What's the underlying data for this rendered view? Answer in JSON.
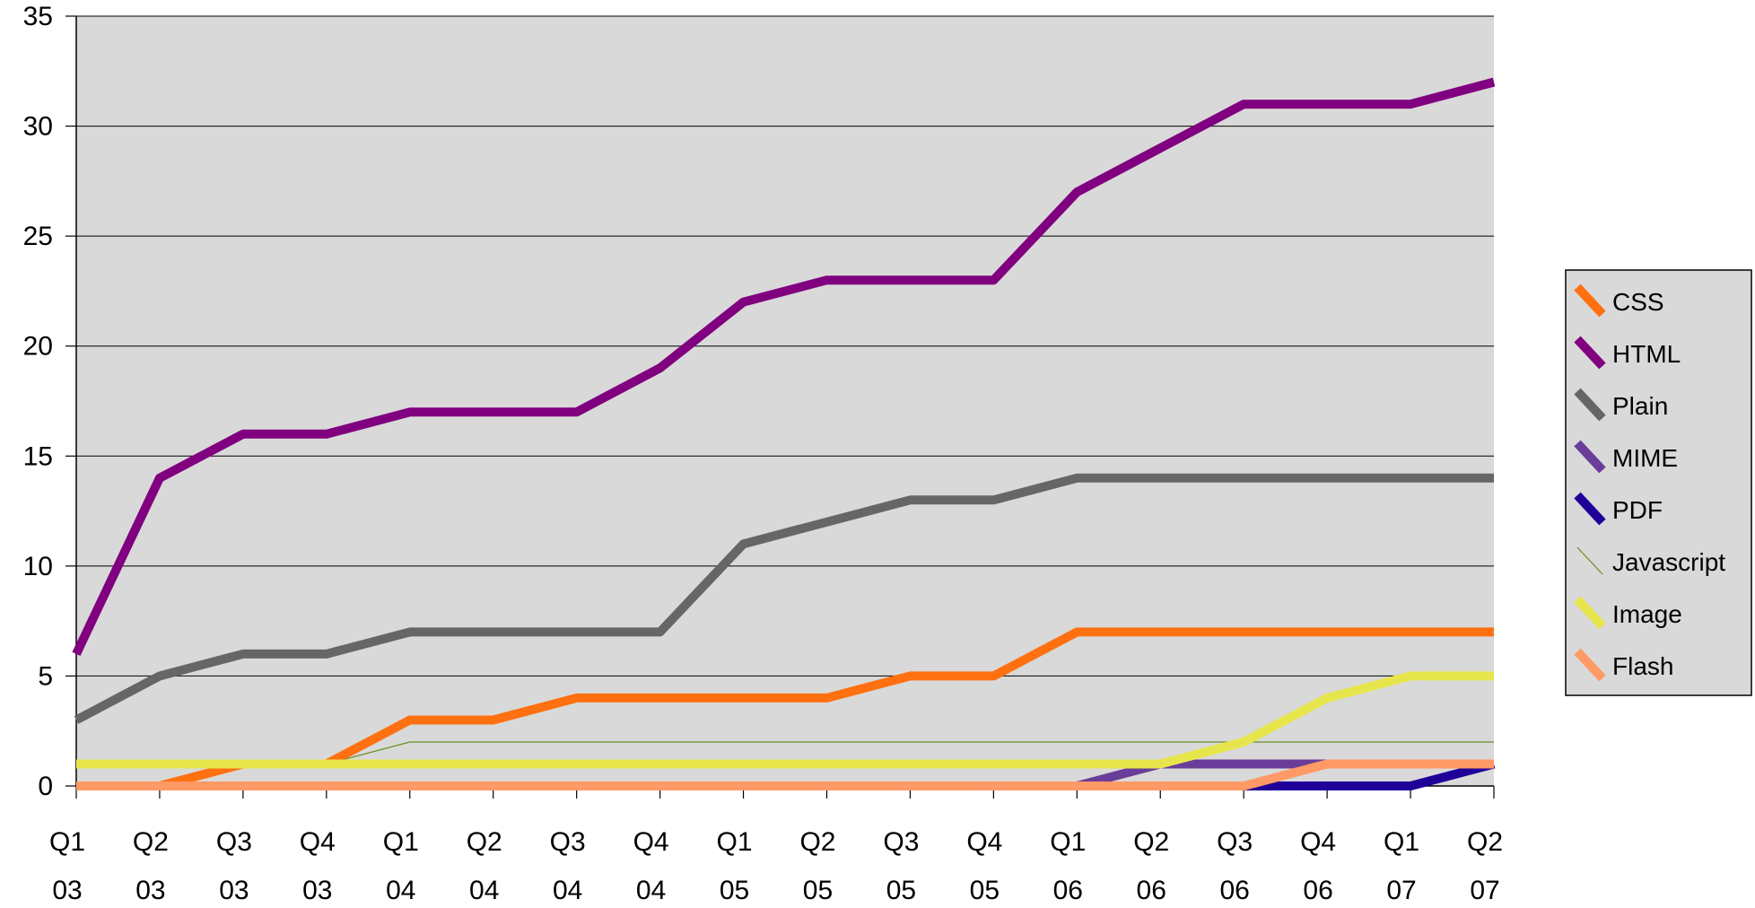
{
  "chart_data": {
    "type": "line",
    "title": "",
    "xlabel": "",
    "ylabel": "",
    "ylim": [
      0,
      35
    ],
    "yticks": [
      0,
      5,
      10,
      15,
      20,
      25,
      30,
      35
    ],
    "grid": true,
    "legend_position": "right",
    "plot_background": "#d9d9d9",
    "categories": [
      [
        "Q1",
        "03"
      ],
      [
        "Q2",
        "03"
      ],
      [
        "Q3",
        "03"
      ],
      [
        "Q4",
        "03"
      ],
      [
        "Q1",
        "04"
      ],
      [
        "Q2",
        "04"
      ],
      [
        "Q3",
        "04"
      ],
      [
        "Q4",
        "04"
      ],
      [
        "Q1",
        "05"
      ],
      [
        "Q2",
        "05"
      ],
      [
        "Q3",
        "05"
      ],
      [
        "Q4",
        "05"
      ],
      [
        "Q1",
        "06"
      ],
      [
        "Q2",
        "06"
      ],
      [
        "Q3",
        "06"
      ],
      [
        "Q4",
        "06"
      ],
      [
        "Q1",
        "07"
      ],
      [
        "Q2",
        "07"
      ]
    ],
    "series": [
      {
        "name": "MIME",
        "color": "#6a3d9a",
        "width": "thick",
        "values": [
          0,
          0,
          0,
          0,
          0,
          0,
          0,
          0,
          0,
          0,
          0,
          0,
          0,
          1,
          1,
          1,
          1,
          1
        ]
      },
      {
        "name": "PDF",
        "color": "#1f0099",
        "width": "thick",
        "values": [
          0,
          0,
          0,
          0,
          0,
          0,
          0,
          0,
          0,
          0,
          0,
          0,
          0,
          0,
          0,
          0,
          0,
          1
        ]
      },
      {
        "name": "Javascript",
        "color": "#6b8e23",
        "width": "thin",
        "values": [
          1,
          1,
          1,
          1,
          2,
          2,
          2,
          2,
          2,
          2,
          2,
          2,
          2,
          2,
          2,
          2,
          2,
          2
        ]
      },
      {
        "name": "CSS",
        "color": "#ff7010",
        "width": "thick",
        "values": [
          0,
          0,
          1,
          1,
          3,
          3,
          4,
          4,
          4,
          4,
          5,
          5,
          7,
          7,
          7,
          7,
          7,
          7
        ]
      },
      {
        "name": "Plain",
        "color": "#666666",
        "width": "thick",
        "values": [
          3,
          5,
          6,
          6,
          7,
          7,
          7,
          7,
          11,
          12,
          13,
          13,
          14,
          14,
          14,
          14,
          14,
          14
        ]
      },
      {
        "name": "HTML",
        "color": "#800080",
        "width": "thick",
        "values": [
          6,
          14,
          16,
          16,
          17,
          17,
          17,
          19,
          22,
          23,
          23,
          23,
          27,
          29,
          31,
          31,
          31,
          32
        ]
      },
      {
        "name": "Image",
        "color": "#e6e64c",
        "width": "thick",
        "values": [
          1,
          1,
          1,
          1,
          1,
          1,
          1,
          1,
          1,
          1,
          1,
          1,
          1,
          1,
          2,
          4,
          5,
          5
        ]
      },
      {
        "name": "Flash",
        "color": "#ff9966",
        "width": "thick",
        "values": [
          0,
          0,
          0,
          0,
          0,
          0,
          0,
          0,
          0,
          0,
          0,
          0,
          0,
          0,
          0,
          1,
          1,
          1
        ]
      }
    ],
    "legend": [
      {
        "name": "CSS",
        "color": "#ff7010",
        "width": "thick"
      },
      {
        "name": "HTML",
        "color": "#800080",
        "width": "thick"
      },
      {
        "name": "Plain",
        "color": "#666666",
        "width": "thick"
      },
      {
        "name": "MIME",
        "color": "#6a3d9a",
        "width": "thick"
      },
      {
        "name": "PDF",
        "color": "#1f0099",
        "width": "thick"
      },
      {
        "name": "Javascript",
        "color": "#6b8e23",
        "width": "thin"
      },
      {
        "name": "Image",
        "color": "#e6e64c",
        "width": "thick"
      },
      {
        "name": "Flash",
        "color": "#ff9966",
        "width": "thick"
      }
    ]
  }
}
